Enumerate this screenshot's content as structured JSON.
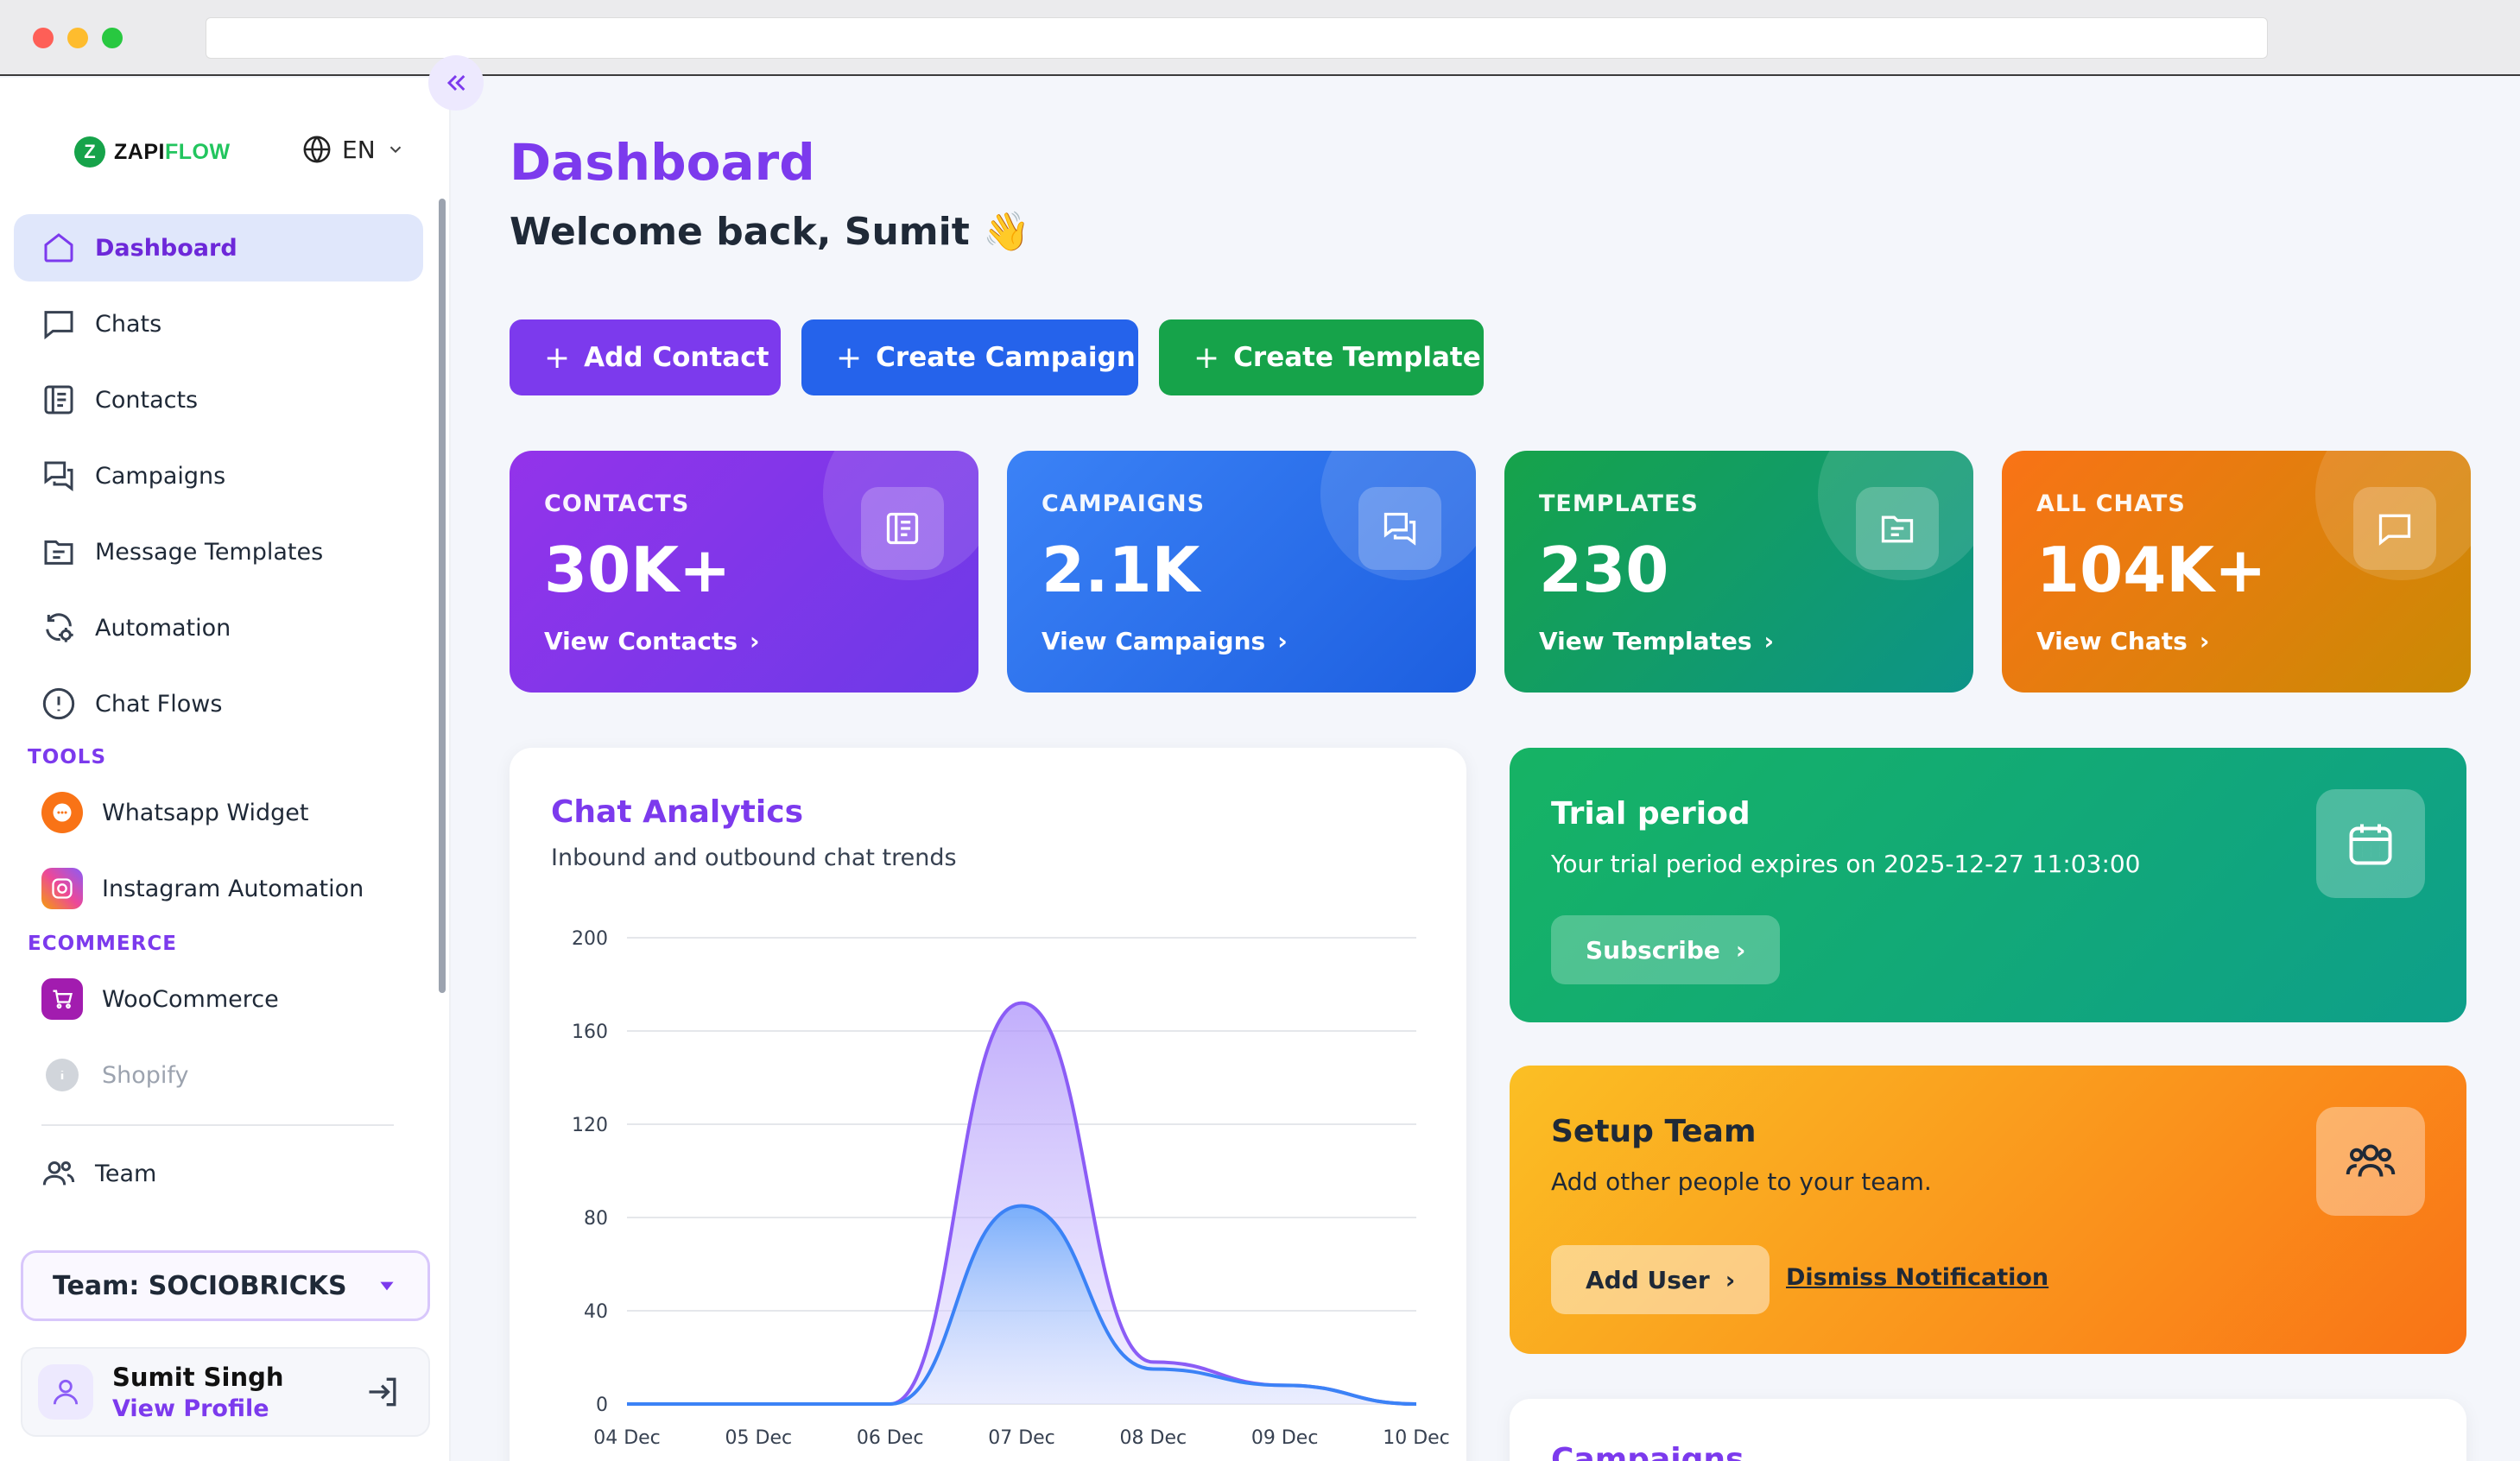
{
  "sidebar": {
    "logo": {
      "part1": "ZAPI",
      "part2": "FLOW",
      "mark": "Z"
    },
    "language": "EN",
    "nav": [
      {
        "label": "Dashboard",
        "icon": "home-icon"
      },
      {
        "label": "Chats",
        "icon": "chat-icon"
      },
      {
        "label": "Contacts",
        "icon": "contacts-icon"
      },
      {
        "label": "Campaigns",
        "icon": "campaigns-icon"
      },
      {
        "label": "Message Templates",
        "icon": "template-icon"
      },
      {
        "label": "Automation",
        "icon": "automation-icon"
      },
      {
        "label": "Chat Flows",
        "icon": "alert-circle-icon"
      }
    ],
    "tools_label": "TOOLS",
    "tools": [
      {
        "label": "Whatsapp Widget",
        "icon": "whatsapp-widget-icon"
      },
      {
        "label": "Instagram Automation",
        "icon": "instagram-icon"
      }
    ],
    "ecommerce_label": "ECOMMERCE",
    "ecommerce": [
      {
        "label": "WooCommerce",
        "icon": "woocommerce-icon"
      },
      {
        "label": "Shopify",
        "icon": "info-icon"
      }
    ],
    "team_nav": {
      "label": "Team",
      "icon": "team-icon"
    },
    "team_select": "Team: SOCIOBRICKS",
    "profile": {
      "name": "Sumit Singh",
      "link": "View Profile"
    }
  },
  "main": {
    "title": "Dashboard",
    "welcome": "Welcome back, Sumit 👋",
    "actions": [
      {
        "label": "Add Contact",
        "color": "#7c3aed"
      },
      {
        "label": "Create Campaign",
        "color": "#2563eb"
      },
      {
        "label": "Create Template",
        "color": "#16a34a"
      }
    ],
    "stats": [
      {
        "label": "CONTACTS",
        "value": "30K+",
        "link": "View Contacts",
        "icon": "contacts-icon"
      },
      {
        "label": "CAMPAIGNS",
        "value": "2.1K",
        "link": "View Campaigns",
        "icon": "campaigns-icon"
      },
      {
        "label": "TEMPLATES",
        "value": "230",
        "link": "View Templates",
        "icon": "template-icon"
      },
      {
        "label": "ALL CHATS",
        "value": "104K+",
        "link": "View Chats",
        "icon": "chat-icon"
      }
    ],
    "analytics": {
      "title": "Chat Analytics",
      "subtitle": "Inbound and outbound chat trends"
    },
    "trial": {
      "title": "Trial period",
      "desc": "Your trial period expires on 2025-12-27 11:03:00",
      "button": "Subscribe",
      "icon": "calendar-icon"
    },
    "setup_team": {
      "title": "Setup Team",
      "desc": "Add other people to your team.",
      "button": "Add User",
      "dismiss": "Dismiss Notification",
      "icon": "team-icon"
    },
    "campaigns_panel": {
      "title": "Campaigns"
    }
  },
  "chart_data": {
    "type": "area",
    "x": [
      "04 Dec",
      "05 Dec",
      "06 Dec",
      "07 Dec",
      "08 Dec",
      "09 Dec",
      "10 Dec"
    ],
    "series": [
      {
        "values": [
          0,
          0,
          0,
          172,
          18,
          8,
          0
        ],
        "color": "#8b5cf6"
      },
      {
        "values": [
          0,
          0,
          0,
          85,
          15,
          8,
          0
        ],
        "color": "#3b82f6"
      }
    ],
    "y_ticks": [
      0,
      40,
      80,
      120,
      160,
      200
    ],
    "ylim": [
      0,
      200
    ],
    "grid": true
  }
}
